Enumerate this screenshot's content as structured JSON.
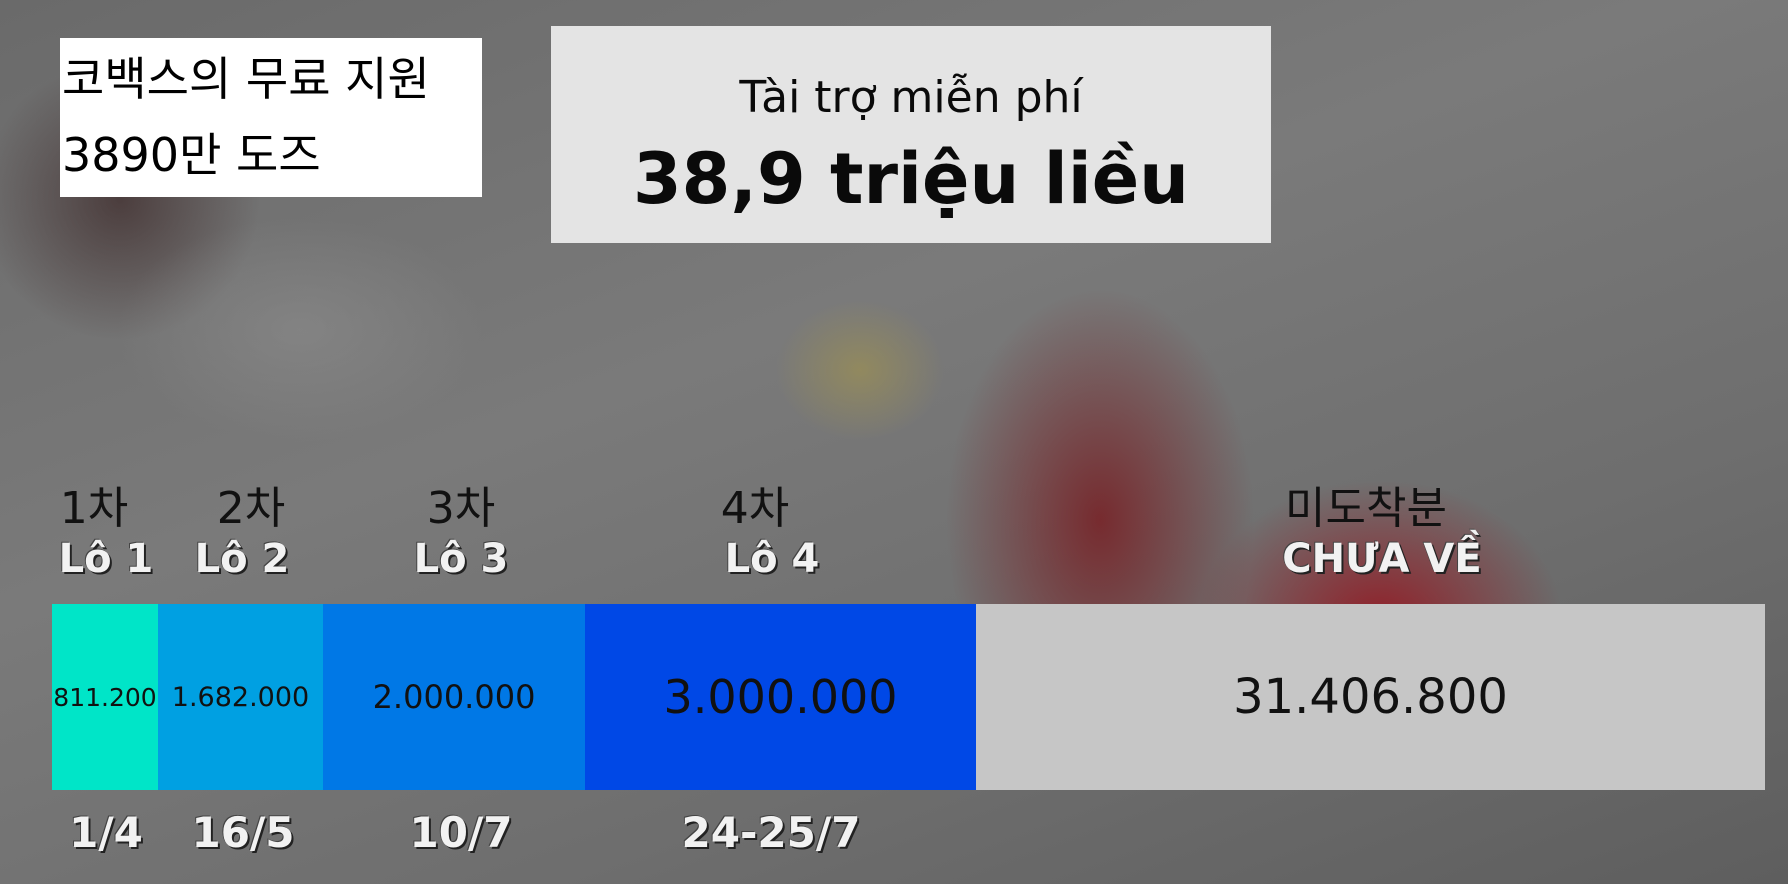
{
  "korean_caption": {
    "line1": "코백스의 무료 지원",
    "line2": "3890만 도즈"
  },
  "header": {
    "subtitle": "Tài trợ miễn phí",
    "title": "38,9 triệu liều"
  },
  "chart_data": {
    "type": "bar",
    "orientation": "horizontal-stacked",
    "categories_korean": [
      "1차",
      "2차",
      "3차",
      "4차",
      "미도착분"
    ],
    "categories": [
      "Lô 1",
      "Lô 2",
      "Lô 3",
      "Lô 4",
      "CHƯA VỀ"
    ],
    "value_labels": [
      "811.200",
      "1.682.000",
      "2.000.000",
      "3.000.000",
      "31.406.800"
    ],
    "values": [
      811200,
      1682000,
      2000000,
      3000000,
      31406800
    ],
    "dates": [
      "1/4",
      "16/5",
      "10/7",
      "24-25/7"
    ],
    "colors": [
      "#00e5c8",
      "#00a0e2",
      "#0078e6",
      "#0048e6",
      "#c6c6c6"
    ]
  }
}
